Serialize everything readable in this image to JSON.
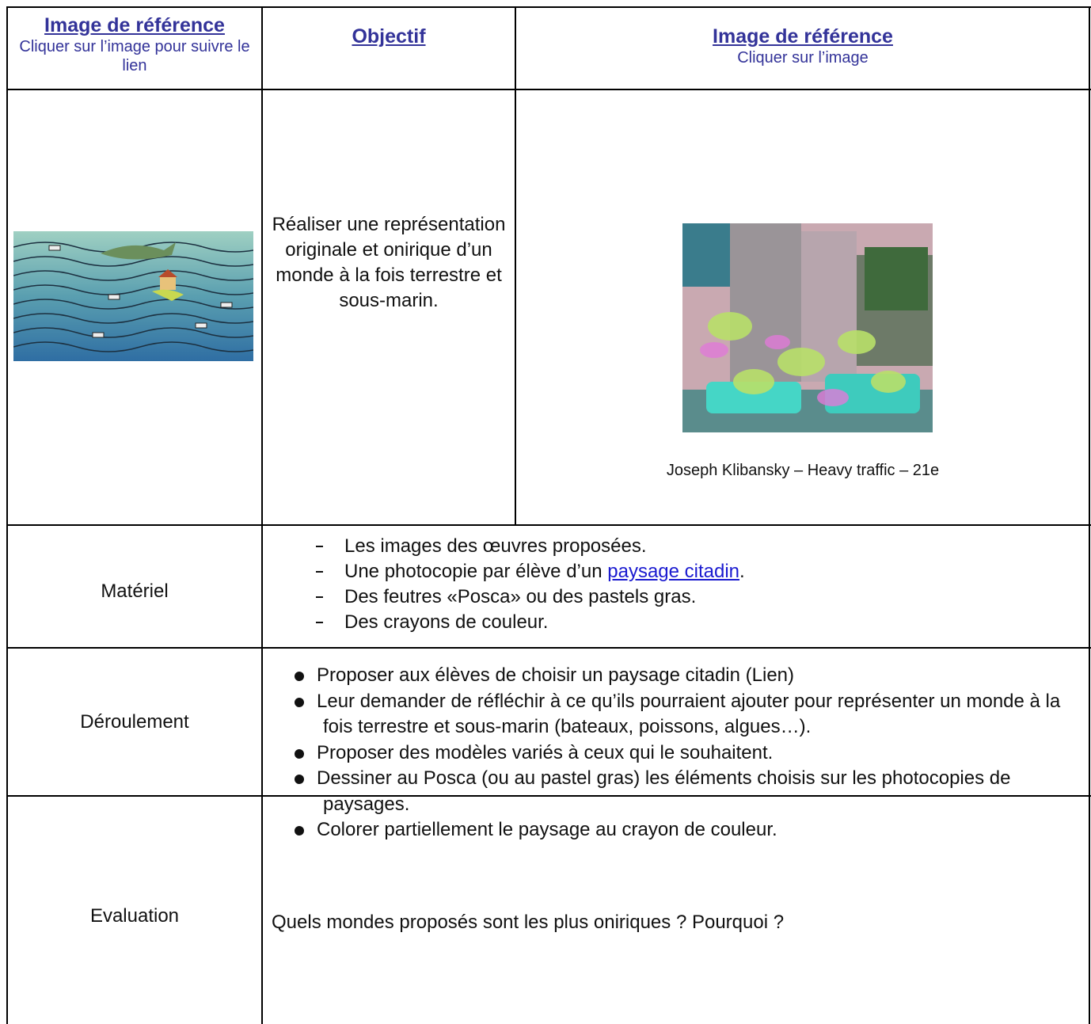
{
  "header": {
    "col1": {
      "title": "Image de référence",
      "subtitle": "Cliquer sur l’image pour suivre le lien"
    },
    "col2": {
      "title": "Objectif"
    },
    "col3": {
      "title": "Image de référence",
      "subtitle": "Cliquer sur l’image"
    }
  },
  "objective": "Réaliser une représentation originale et onirique d’un monde à la fois terrestre et sous-marin.",
  "caption": "Joseph Klibansky – Heavy traffic – 21e",
  "materiel": {
    "label": "Matériel",
    "items": [
      [
        "Les images des œuvres proposées."
      ],
      [
        "Une photocopie par élève d’un ",
        "paysage citadin",
        "."
      ],
      [
        "Des feutres «Posca» ou des pastels gras."
      ],
      [
        "Des crayons de couleur."
      ]
    ]
  },
  "deroulement": {
    "label": "Déroulement",
    "items": [
      "Proposer aux élèves de choisir un paysage citadin (Lien)",
      "Leur demander de réfléchir à ce qu’ils pourraient ajouter pour représenter un monde à la fois terrestre et sous-marin (bateaux, poissons, algues…).",
      "Proposer des modèles variés à ceux qui le souhaitent.",
      "Dessiner au Posca (ou au pastel gras) les éléments choisis sur les photocopies de paysages.",
      "Colorer partiellement le paysage au crayon de couleur."
    ]
  },
  "evaluation": {
    "label": "Evaluation",
    "text": "Quels mondes proposés sont les plus oniriques ? Pourquoi ?"
  }
}
